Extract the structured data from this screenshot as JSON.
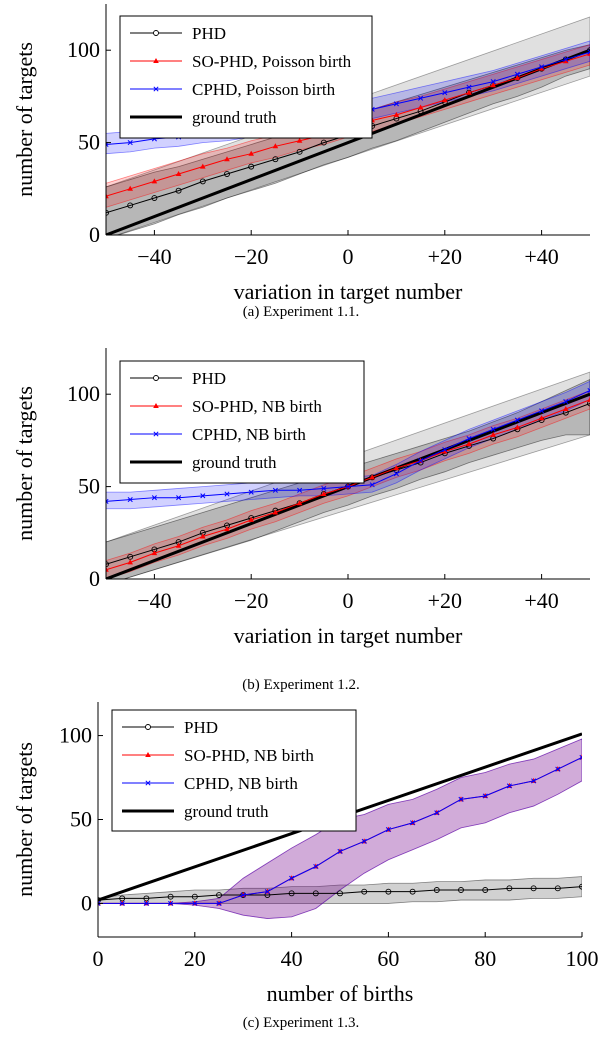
{
  "chart_data": [
    {
      "type": "line",
      "caption": "(a) Experiment 1.1.",
      "xlabel": "variation in target number",
      "ylabel": "number of targets",
      "xlim": [
        -50,
        50
      ],
      "ylim": [
        0,
        125
      ],
      "xticks": [
        -40,
        -20,
        0,
        20,
        40
      ],
      "xtick_labels": [
        "−40",
        "−20",
        "0",
        "+20",
        "+40"
      ],
      "yticks": [
        0,
        50,
        100
      ],
      "ytick_labels": [
        "0",
        "50",
        "100"
      ],
      "legend": "top-left",
      "series": [
        {
          "name": "PHD",
          "color": "#000000",
          "marker": "circle",
          "x": [
            -50,
            -45,
            -40,
            -35,
            -30,
            -25,
            -20,
            -15,
            -10,
            -5,
            0,
            5,
            10,
            15,
            20,
            25,
            30,
            35,
            40,
            45,
            50
          ],
          "y": [
            12,
            16,
            20,
            24,
            29,
            33,
            37,
            41,
            45,
            50,
            54,
            59,
            63,
            67,
            72,
            77,
            81,
            85,
            90,
            95,
            100
          ],
          "band_low": [
            -2,
            2,
            6,
            11,
            15,
            20,
            24,
            28,
            33,
            38,
            42,
            47,
            51,
            56,
            61,
            66,
            71,
            75,
            80,
            86,
            90
          ],
          "band_high": [
            26,
            30,
            34,
            37,
            41,
            45,
            49,
            53,
            56,
            60,
            64,
            68,
            72,
            76,
            80,
            84,
            88,
            92,
            96,
            100,
            103
          ]
        },
        {
          "name": "SO-PHD, Poisson birth",
          "color": "#ff0000",
          "marker": "triangle",
          "x": [
            -50,
            -45,
            -40,
            -35,
            -30,
            -25,
            -20,
            -15,
            -10,
            -5,
            0,
            5,
            10,
            15,
            20,
            25,
            30,
            35,
            40,
            45,
            50
          ],
          "y": [
            21,
            25,
            29,
            33,
            37,
            41,
            44,
            48,
            51,
            54,
            58,
            62,
            65,
            69,
            73,
            77,
            81,
            85,
            90,
            94,
            98
          ],
          "band_low": [
            15,
            19,
            23,
            27,
            31,
            35,
            39,
            42,
            46,
            49,
            53,
            56,
            60,
            64,
            68,
            72,
            76,
            80,
            84,
            88,
            92
          ],
          "band_high": [
            28,
            32,
            36,
            40,
            44,
            47,
            51,
            54,
            58,
            61,
            65,
            68,
            72,
            75,
            79,
            83,
            87,
            91,
            95,
            99,
            103
          ]
        },
        {
          "name": "CPHD, Poisson birth",
          "color": "#0000ff",
          "marker": "cross",
          "x": [
            -50,
            -45,
            -40,
            -35,
            -30,
            -25,
            -20,
            -15,
            -10,
            -5,
            0,
            5,
            10,
            15,
            20,
            25,
            30,
            35,
            40,
            45,
            50
          ],
          "y": [
            49,
            50,
            52,
            53,
            55,
            56,
            58,
            60,
            61,
            63,
            65,
            68,
            71,
            74,
            77,
            80,
            83,
            87,
            91,
            95,
            99
          ],
          "band_low": [
            44,
            45,
            47,
            48,
            50,
            51,
            53,
            55,
            57,
            59,
            61,
            63,
            66,
            69,
            72,
            75,
            78,
            82,
            86,
            90,
            94
          ],
          "band_high": [
            55,
            56,
            58,
            59,
            61,
            63,
            64,
            66,
            68,
            70,
            72,
            74,
            77,
            80,
            83,
            86,
            89,
            93,
            97,
            101,
            105
          ]
        },
        {
          "name": "ground truth",
          "color": "#000000",
          "marker": "none",
          "x": [
            -50,
            50
          ],
          "y": [
            0,
            100
          ]
        }
      ],
      "gray_band": {
        "x": [
          -50,
          50
        ],
        "low": [
          -2,
          86
        ],
        "high": [
          26,
          118
        ]
      }
    },
    {
      "type": "line",
      "caption": "(b) Experiment 1.2.",
      "xlabel": "variation in target number",
      "ylabel": "number of targets",
      "xlim": [
        -50,
        50
      ],
      "ylim": [
        0,
        125
      ],
      "xticks": [
        -40,
        -20,
        0,
        20,
        40
      ],
      "xtick_labels": [
        "−40",
        "−20",
        "0",
        "+20",
        "+40"
      ],
      "yticks": [
        0,
        50,
        100
      ],
      "ytick_labels": [
        "0",
        "50",
        "100"
      ],
      "legend": "top-left",
      "series": [
        {
          "name": "PHD",
          "color": "#000000",
          "marker": "circle",
          "x": [
            -50,
            -45,
            -40,
            -35,
            -30,
            -25,
            -20,
            -15,
            -10,
            -5,
            0,
            5,
            10,
            15,
            20,
            25,
            30,
            35,
            40,
            45,
            50
          ],
          "y": [
            8,
            12,
            16,
            20,
            25,
            29,
            33,
            37,
            41,
            46,
            50,
            55,
            59,
            63,
            68,
            72,
            76,
            81,
            86,
            90,
            95
          ],
          "band_low": [
            -3,
            1,
            5,
            9,
            13,
            17,
            21,
            26,
            31,
            36,
            40,
            45,
            49,
            54,
            58,
            63,
            67,
            71,
            75,
            78,
            78
          ],
          "band_high": [
            20,
            24,
            28,
            32,
            36,
            40,
            44,
            48,
            52,
            56,
            60,
            64,
            68,
            72,
            76,
            80,
            85,
            90,
            96,
            102,
            108
          ]
        },
        {
          "name": "SO-PHD, NB birth",
          "color": "#ff0000",
          "marker": "triangle",
          "x": [
            -50,
            -45,
            -40,
            -35,
            -30,
            -25,
            -20,
            -15,
            -10,
            -5,
            0,
            5,
            10,
            15,
            20,
            25,
            30,
            35,
            40,
            45,
            50
          ],
          "y": [
            5,
            9,
            14,
            18,
            23,
            27,
            32,
            36,
            41,
            46,
            50,
            55,
            60,
            64,
            69,
            73,
            78,
            82,
            87,
            92,
            97
          ],
          "band_low": [
            0,
            4,
            9,
            13,
            18,
            22,
            27,
            31,
            36,
            41,
            45,
            50,
            55,
            59,
            64,
            68,
            73,
            77,
            82,
            87,
            92
          ],
          "band_high": [
            10,
            14,
            19,
            23,
            28,
            32,
            37,
            41,
            46,
            51,
            55,
            60,
            65,
            69,
            74,
            78,
            83,
            87,
            92,
            97,
            102
          ]
        },
        {
          "name": "CPHD, NB birth",
          "color": "#0000ff",
          "marker": "cross",
          "x": [
            -50,
            -45,
            -40,
            -35,
            -30,
            -25,
            -20,
            -15,
            -10,
            -5,
            0,
            5,
            10,
            15,
            20,
            25,
            30,
            35,
            40,
            45,
            50
          ],
          "y": [
            42,
            43,
            44,
            44,
            45,
            46,
            47,
            48,
            48,
            49,
            50,
            51,
            57,
            64,
            70,
            76,
            81,
            86,
            91,
            96,
            102
          ],
          "band_low": [
            38,
            38,
            39,
            40,
            41,
            42,
            43,
            44,
            45,
            45,
            46,
            47,
            52,
            59,
            65,
            71,
            76,
            81,
            86,
            91,
            97
          ],
          "band_high": [
            47,
            47,
            48,
            49,
            50,
            51,
            52,
            53,
            53,
            54,
            55,
            56,
            62,
            69,
            75,
            81,
            86,
            91,
            96,
            101,
            107
          ]
        },
        {
          "name": "ground truth",
          "color": "#000000",
          "marker": "none",
          "x": [
            -50,
            50
          ],
          "y": [
            0,
            100
          ]
        }
      ],
      "gray_band": {
        "x": [
          -50,
          50
        ],
        "low": [
          -3,
          78
        ],
        "high": [
          20,
          112
        ]
      }
    },
    {
      "type": "line",
      "caption": "(c) Experiment 1.3.",
      "xlabel": "number of births",
      "ylabel": "number of targets",
      "xlim": [
        0,
        100
      ],
      "ylim": [
        -20,
        120
      ],
      "xticks": [
        0,
        20,
        40,
        60,
        80,
        100
      ],
      "xtick_labels": [
        "0",
        "20",
        "40",
        "60",
        "80",
        "100"
      ],
      "yticks": [
        0,
        50,
        100
      ],
      "ytick_labels": [
        "0",
        "50",
        "100"
      ],
      "legend": "top-left",
      "series": [
        {
          "name": "PHD",
          "color": "#000000",
          "marker": "circle",
          "x": [
            0,
            5,
            10,
            15,
            20,
            25,
            30,
            35,
            40,
            45,
            50,
            55,
            60,
            65,
            70,
            75,
            80,
            85,
            90,
            95,
            100
          ],
          "y": [
            2,
            3,
            3,
            4,
            4,
            5,
            5,
            5,
            6,
            6,
            6,
            7,
            7,
            7,
            8,
            8,
            8,
            9,
            9,
            9,
            10
          ],
          "band_low": [
            0,
            0,
            0,
            0,
            0,
            0,
            0,
            0,
            0,
            0,
            0,
            0,
            0,
            1,
            1,
            2,
            2,
            2,
            3,
            3,
            4
          ],
          "band_high": [
            3,
            5,
            6,
            7,
            8,
            8,
            9,
            9,
            10,
            10,
            11,
            11,
            12,
            12,
            13,
            13,
            14,
            14,
            15,
            15,
            16
          ]
        },
        {
          "name": "SO-PHD, NB birth",
          "color": "#ff0000",
          "marker": "triangle",
          "x": [
            0,
            5,
            10,
            15,
            20,
            25,
            30,
            35,
            40,
            45,
            50,
            55,
            60,
            65,
            70,
            75,
            80,
            85,
            90,
            95,
            100
          ],
          "y": [
            0,
            0,
            0,
            0,
            0,
            0,
            5,
            7,
            15,
            22,
            31,
            37,
            44,
            48,
            54,
            62,
            64,
            70,
            73,
            80,
            87
          ],
          "band_low": [
            0,
            0,
            0,
            0,
            -1,
            -3,
            -7,
            -9,
            -8,
            -3,
            8,
            18,
            26,
            32,
            38,
            45,
            48,
            54,
            58,
            65,
            73
          ],
          "band_high": [
            0,
            0,
            0,
            0,
            1,
            3,
            15,
            24,
            33,
            41,
            50,
            53,
            59,
            62,
            68,
            75,
            78,
            83,
            86,
            92,
            98
          ]
        },
        {
          "name": "CPHD, NB birth",
          "color": "#0000ff",
          "marker": "cross",
          "x": [
            0,
            5,
            10,
            15,
            20,
            25,
            30,
            35,
            40,
            45,
            50,
            55,
            60,
            65,
            70,
            75,
            80,
            85,
            90,
            95,
            100
          ],
          "y": [
            0,
            0,
            0,
            0,
            0,
            0,
            5,
            7,
            15,
            22,
            31,
            37,
            44,
            48,
            54,
            62,
            64,
            70,
            73,
            80,
            87
          ],
          "band_low": [
            0,
            0,
            0,
            0,
            -1,
            -3,
            -7,
            -9,
            -8,
            -3,
            8,
            18,
            26,
            32,
            38,
            45,
            48,
            54,
            58,
            65,
            73
          ],
          "band_high": [
            0,
            0,
            0,
            0,
            1,
            3,
            15,
            24,
            33,
            41,
            50,
            53,
            59,
            62,
            68,
            75,
            78,
            83,
            86,
            92,
            98
          ]
        },
        {
          "name": "ground truth",
          "color": "#000000",
          "marker": "none",
          "x": [
            0,
            100
          ],
          "y": [
            2,
            101
          ]
        }
      ]
    }
  ]
}
